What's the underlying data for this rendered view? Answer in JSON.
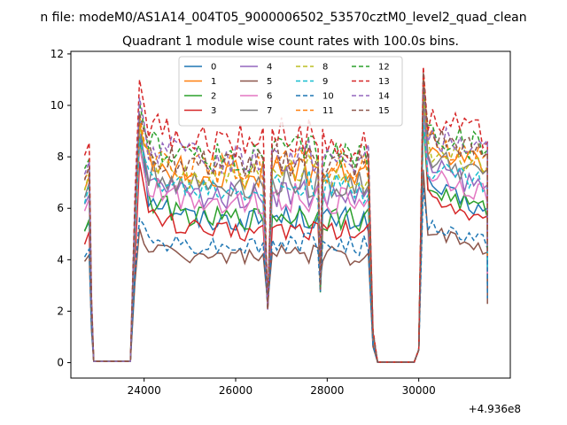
{
  "figure": {
    "suptitle": "n file: modeM0/AS1A14_004T05_9000006502_53570cztM0_level2_quad_clean",
    "title": "Quadrant 1 module wise count rates with 100.0s bins.",
    "offset_text": "+4.936e8"
  },
  "chart_data": {
    "type": "line",
    "title": "Quadrant 1 module wise count rates with 100.0s bins.",
    "xlabel": "",
    "ylabel": "",
    "x_offset": 493600000,
    "xlim": [
      22400,
      32000
    ],
    "ylim": [
      -0.6,
      12.1
    ],
    "xticks": [
      24000,
      26000,
      28000,
      30000
    ],
    "xtick_labels": [
      "24000",
      "26000",
      "28000",
      "30000"
    ],
    "yticks": [
      0,
      2,
      4,
      6,
      8,
      10,
      12
    ],
    "ytick_labels": [
      "0",
      "2",
      "4",
      "6",
      "8",
      "10",
      "12"
    ],
    "grid": false,
    "legend_position": "top-center",
    "legend_columns": 4,
    "series": [
      {
        "name": "0",
        "color": "#1f77b4",
        "dash": "solid",
        "level": 5.55,
        "peak1": 9.5,
        "peak2": 9.9
      },
      {
        "name": "1",
        "color": "#ff7f0e",
        "dash": "solid",
        "level": 7.3,
        "peak1": 9.3,
        "peak2": 10.7
      },
      {
        "name": "2",
        "color": "#2ca02c",
        "dash": "solid",
        "level": 5.6,
        "peak1": 8.6,
        "peak2": 9.4
      },
      {
        "name": "3",
        "color": "#d62728",
        "dash": "solid",
        "level": 5.1,
        "peak1": 7.8,
        "peak2": 10.2
      },
      {
        "name": "4",
        "color": "#9467bd",
        "dash": "solid",
        "level": 6.5,
        "peak1": 8.9,
        "peak2": 10.0
      },
      {
        "name": "5",
        "color": "#8c564b",
        "dash": "solid",
        "level": 4.15,
        "peak1": 5.2,
        "peak2": 7.5
      },
      {
        "name": "6",
        "color": "#e377c2",
        "dash": "solid",
        "level": 6.3,
        "peak1": 8.4,
        "peak2": 9.7
      },
      {
        "name": "7",
        "color": "#7f7f7f",
        "dash": "solid",
        "level": 6.9,
        "peak1": 8.8,
        "peak2": 10.3
      },
      {
        "name": "8",
        "color": "#bcbd22",
        "dash": "dashed",
        "level": 7.25,
        "peak1": 9.2,
        "peak2": 10.5
      },
      {
        "name": "9",
        "color": "#17becf",
        "dash": "dashed",
        "level": 6.75,
        "peak1": 8.7,
        "peak2": 9.5
      },
      {
        "name": "10",
        "color": "#1f77b4",
        "dash": "dashed",
        "level": 4.55,
        "peak1": 5.6,
        "peak2": 6.8
      },
      {
        "name": "11",
        "color": "#ff7f0e",
        "dash": "dashed",
        "level": 7.55,
        "peak1": 9.6,
        "peak2": 11.2
      },
      {
        "name": "12",
        "color": "#2ca02c",
        "dash": "dashed",
        "level": 8.0,
        "peak1": 10.1,
        "peak2": 10.7
      },
      {
        "name": "13",
        "color": "#d62728",
        "dash": "dashed",
        "level": 8.6,
        "peak1": 11.0,
        "peak2": 11.5
      },
      {
        "name": "14",
        "color": "#9467bd",
        "dash": "dashed",
        "level": 7.85,
        "peak1": 10.3,
        "peak2": 10.9
      },
      {
        "name": "15",
        "color": "#8c564b",
        "dash": "dashed",
        "level": 7.65,
        "peak1": 9.7,
        "peak2": 11.3
      }
    ],
    "segments": [
      {
        "x_start": 22700,
        "x_end": 22800,
        "state": "on"
      },
      {
        "x_start": 22900,
        "x_end": 23700,
        "state": "off"
      },
      {
        "x_start": 23900,
        "x_end": 26700,
        "state": "on"
      },
      {
        "x_start": 26700,
        "x_end": 26700,
        "state": "dip",
        "value": 2.2
      },
      {
        "x_start": 26800,
        "x_end": 27800,
        "state": "on"
      },
      {
        "x_start": 27900,
        "x_end": 28900,
        "state": "on"
      },
      {
        "x_start": 29100,
        "x_end": 29900,
        "state": "off"
      },
      {
        "x_start": 30100,
        "x_end": 31500,
        "state": "on"
      }
    ]
  }
}
